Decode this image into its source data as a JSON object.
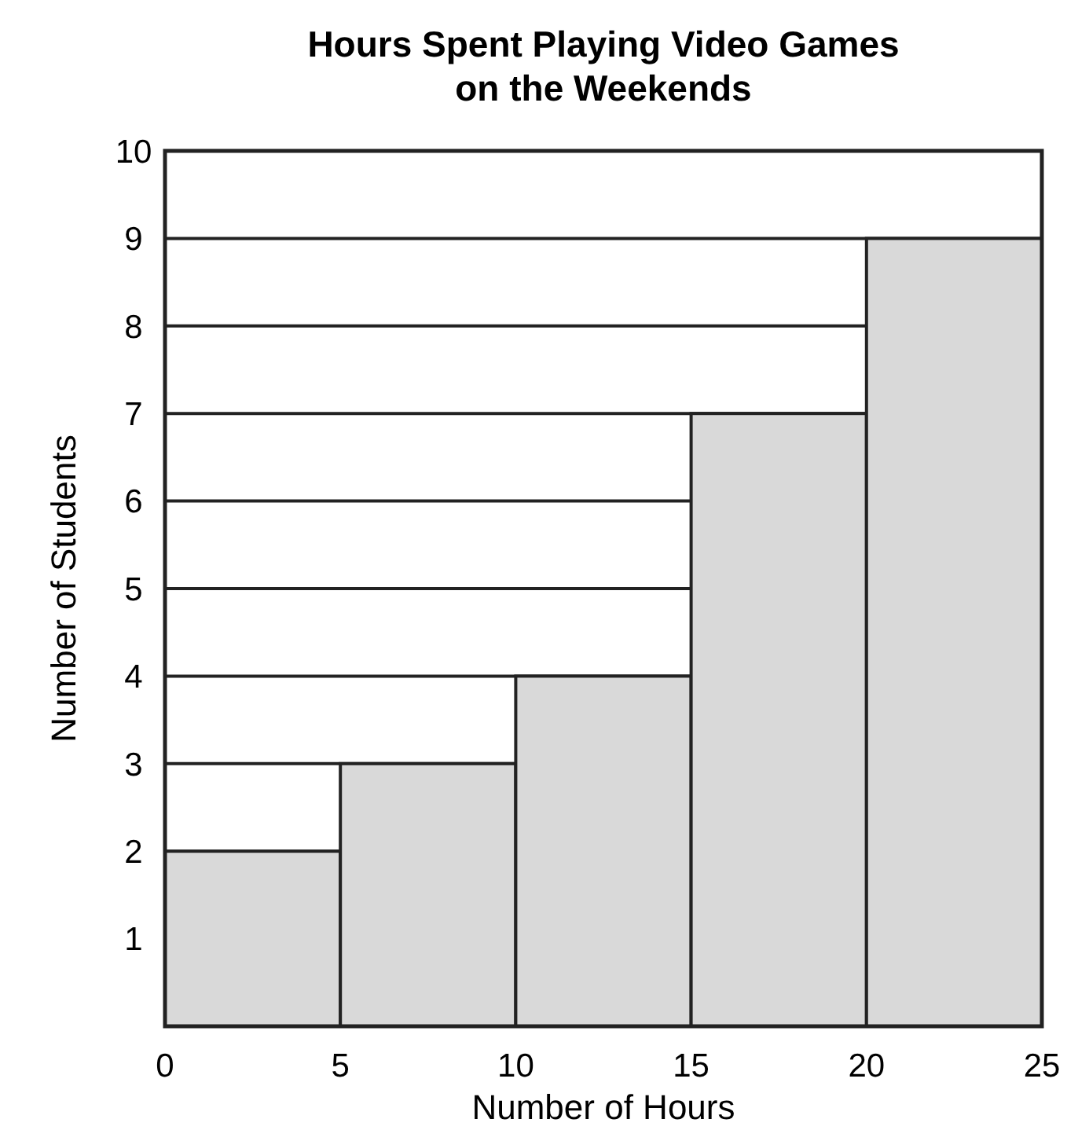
{
  "chart_data": {
    "type": "histogram",
    "title": "Hours Spent Playing Video Games on the Weekends",
    "xlabel": "Number of Hours",
    "ylabel": "Number of Students",
    "bins": [
      0,
      5,
      10,
      15,
      20,
      25
    ],
    "values": [
      2,
      3,
      4,
      7,
      9
    ],
    "color": "#d9d9d9",
    "xlim": [
      0,
      25
    ],
    "xticks": [
      0,
      5,
      10,
      15,
      20,
      25
    ],
    "ylim": [
      0,
      10
    ],
    "yticks": [
      1,
      2,
      3,
      4,
      5,
      6,
      7,
      8,
      9,
      10
    ],
    "grid": "y"
  }
}
